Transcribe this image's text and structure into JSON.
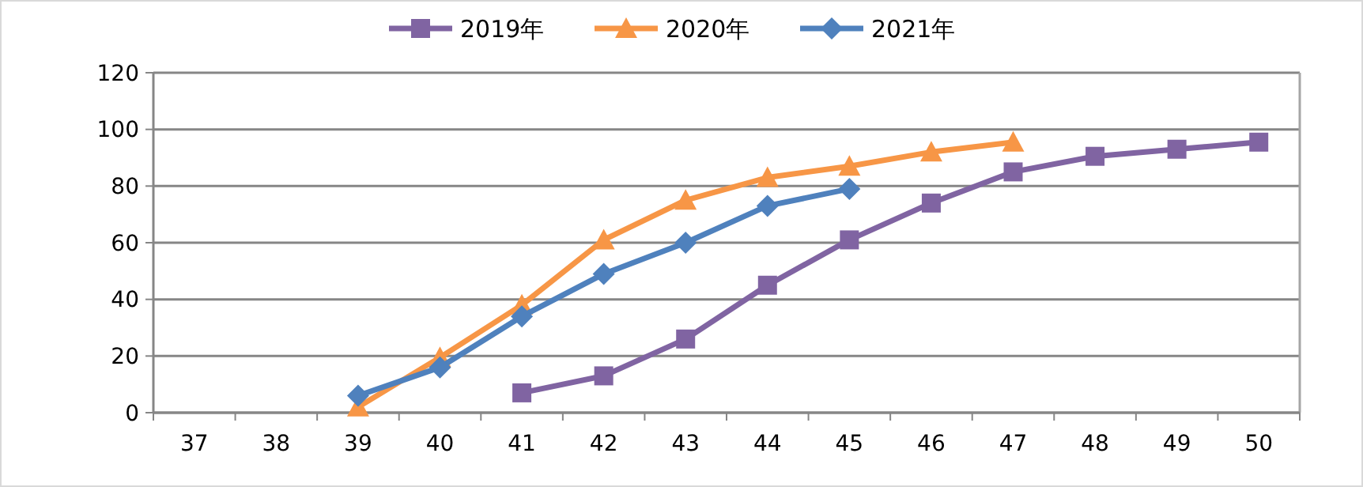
{
  "chart_data": {
    "type": "line",
    "categories": [
      "37",
      "38",
      "39",
      "40",
      "41",
      "42",
      "43",
      "44",
      "45",
      "46",
      "47",
      "48",
      "49",
      "50"
    ],
    "series": [
      {
        "name": "2019年",
        "color": "#8064a2",
        "marker": "square",
        "values": [
          null,
          null,
          null,
          null,
          7,
          13,
          26,
          45,
          61,
          74,
          85,
          90.5,
          93,
          95.5
        ]
      },
      {
        "name": "2020年",
        "color": "#f79646",
        "marker": "triangle",
        "values": [
          null,
          null,
          2,
          19.5,
          38,
          61,
          75,
          83,
          87,
          92,
          95.5,
          null,
          null,
          null
        ]
      },
      {
        "name": "2021年",
        "color": "#4f81bd",
        "marker": "diamond",
        "values": [
          null,
          null,
          6,
          16,
          34,
          49,
          60,
          73,
          79,
          null,
          null,
          null,
          null,
          null
        ]
      }
    ],
    "ylim": [
      0,
      120
    ],
    "yticks": [
      0,
      20,
      40,
      60,
      80,
      100,
      120
    ],
    "grid": "y",
    "legend": "top"
  }
}
